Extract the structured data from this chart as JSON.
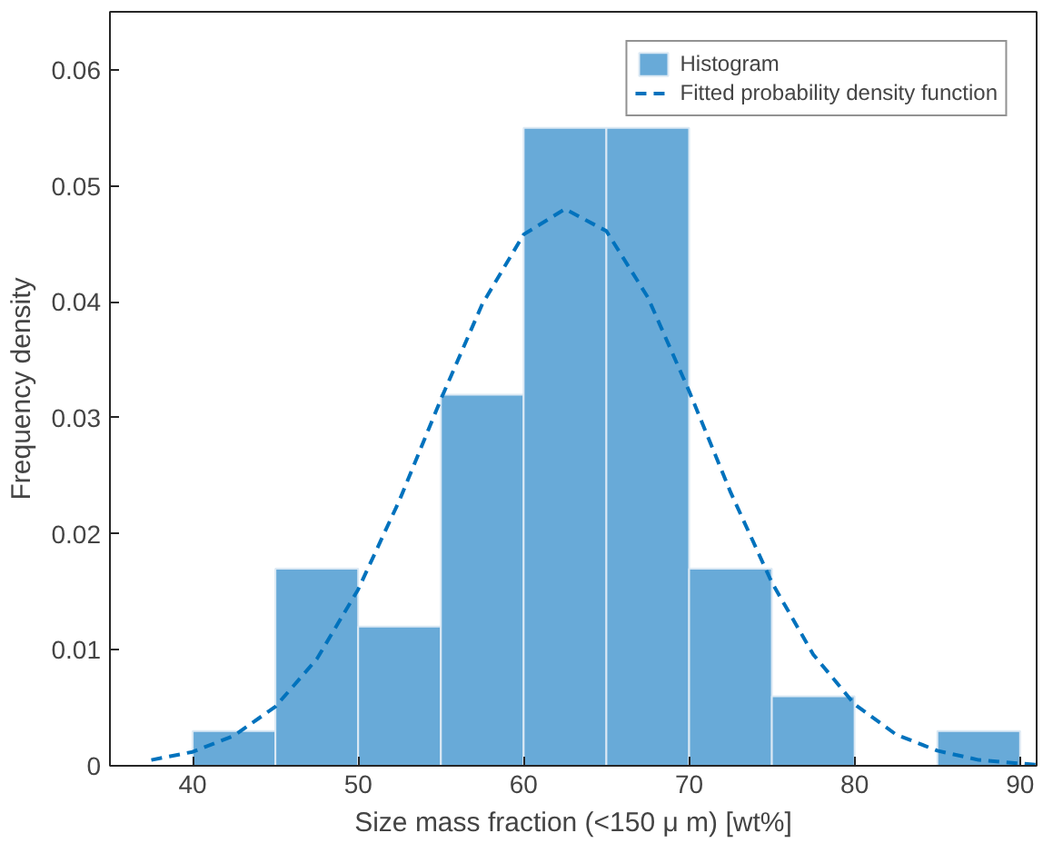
{
  "chart_data": {
    "type": "histogram",
    "xlabel": "Size mass fraction (<150 μ m) [wt%]",
    "ylabel": "Frequency density",
    "bins": [
      40,
      45,
      50,
      55,
      60,
      65,
      70,
      75,
      80,
      85,
      90
    ],
    "series": [
      {
        "name": "Histogram",
        "color": "#68aad8",
        "values": [
          0.003,
          0.017,
          0.012,
          0.032,
          0.055,
          0.055,
          0.017,
          0.006,
          0,
          0.003
        ]
      },
      {
        "type": "line",
        "name": "Fitted probability density function",
        "color": "#0072bd",
        "line_style": "dashed",
        "x": [
          37.5,
          40,
          42.5,
          45,
          47.5,
          50,
          52.5,
          55,
          57.5,
          60,
          62.5,
          65,
          67.5,
          70,
          72.5,
          75,
          77.5,
          80,
          82.5,
          85,
          87.5,
          90,
          91
        ],
        "values": [
          0.0005,
          0.0012,
          0.0026,
          0.0051,
          0.0092,
          0.0152,
          0.0229,
          0.0316,
          0.0398,
          0.0458,
          0.048,
          0.0461,
          0.0404,
          0.0323,
          0.0236,
          0.0158,
          0.0096,
          0.0053,
          0.0027,
          0.0013,
          0.0005,
          0.0002,
          0.0001
        ]
      }
    ],
    "xlim": [
      35,
      91
    ],
    "ylim": [
      0,
      0.065
    ],
    "xticks": [
      40,
      50,
      60,
      70,
      80,
      90
    ],
    "yticks": [
      0,
      0.01,
      0.02,
      0.03,
      0.04,
      0.05,
      0.06
    ],
    "grid": false,
    "legend": "top right"
  }
}
